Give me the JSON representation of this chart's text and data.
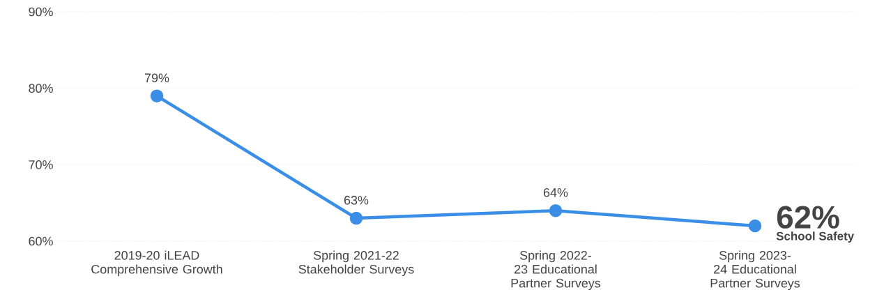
{
  "chart_data": {
    "type": "line",
    "categories": [
      "2019-20 iLEAD Comprehensive Growth",
      "Spring 2021-22 Stakeholder Surveys",
      "Spring 2022-23 Educational Partner Surveys",
      "Spring 2023-24 Educational Partner Surveys"
    ],
    "series": [
      {
        "name": "School Safety",
        "color": "#3a8ee6",
        "values": [
          79,
          63,
          64,
          62
        ],
        "value_labels": [
          "79%",
          "63%",
          "64%",
          "62%"
        ]
      }
    ],
    "ylim": [
      60,
      90
    ],
    "yticks": [
      {
        "value": 60,
        "label": "60%"
      },
      {
        "value": 70,
        "label": "70%"
      },
      {
        "value": 80,
        "label": "80%"
      },
      {
        "value": 90,
        "label": "90%"
      }
    ],
    "grid": "y",
    "marker": "circle",
    "line_style": "solid",
    "legend": false
  }
}
